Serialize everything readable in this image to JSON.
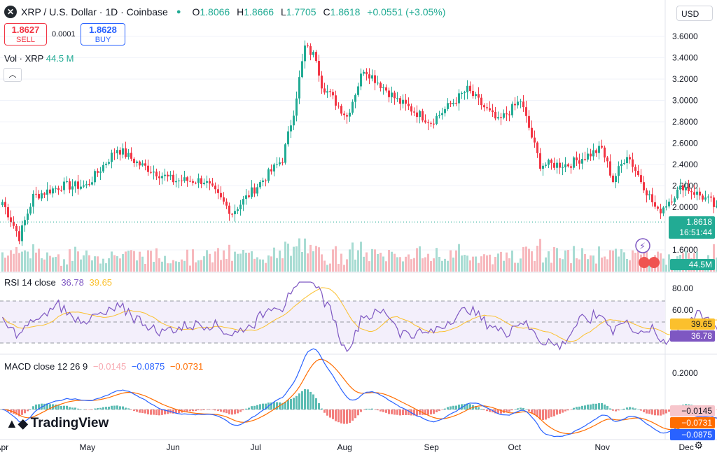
{
  "header": {
    "title": "XRP / U.S. Dollar · 1D · Coinbase",
    "ohlc": [
      {
        "k": "O",
        "v": "1.8066"
      },
      {
        "k": "H",
        "v": "1.8666"
      },
      {
        "k": "L",
        "v": "1.7705"
      },
      {
        "k": "C",
        "v": "1.8618"
      }
    ],
    "change": "+0.0551 (+3.05%)"
  },
  "trade": {
    "sell_price": "1.8627",
    "sell_label": "SELL",
    "spread": "0.0001",
    "buy_price": "1.8628",
    "buy_label": "BUY"
  },
  "currency": "USD",
  "volume_legend": {
    "label": "Vol · XRP",
    "value": "44.5 M"
  },
  "rsi_legend": {
    "label": "RSI 14 close",
    "rsi": "36.78",
    "ma": "39.65"
  },
  "macd_legend": {
    "label": "MACD close 12 26 9",
    "hist": "−0.0145",
    "macd": "−0.0875",
    "signal": "−0.0731"
  },
  "price_tags": {
    "last": "1.8618",
    "countdown": "16:51:44",
    "volume": "44.5M",
    "rsi": "36.78",
    "rsi_ma": "39.65",
    "macd_hist": "−0.0145",
    "macd_signal": "−0.0731",
    "macd": "−0.0875"
  },
  "branding": "TradingView",
  "colors": {
    "up": "#22ab94",
    "down": "#f23645",
    "rsi": "#7e57c2",
    "rsi_ma": "#fbc02d",
    "macd": "#2962ff",
    "signal": "#ff6d00"
  },
  "chart_data": {
    "type": "candlestick",
    "title": "XRP / U.S. Dollar · 1D · Coinbase",
    "price_axis_ticks": [
      "3.6000",
      "3.4000",
      "3.2000",
      "3.0000",
      "2.8000",
      "2.6000",
      "2.4000",
      "2.2000",
      "2.0000",
      "1.6000"
    ],
    "x_ticks": [
      "Apr",
      "May",
      "Jun",
      "Jul",
      "Aug",
      "Sep",
      "Oct",
      "Nov",
      "Dec"
    ],
    "anchors": [
      [
        "2025-04-01",
        2.05
      ],
      [
        "2025-04-07",
        1.72
      ],
      [
        "2025-04-12",
        2.1
      ],
      [
        "2025-04-22",
        2.2
      ],
      [
        "2025-05-01",
        2.2
      ],
      [
        "2025-05-12",
        2.55
      ],
      [
        "2025-05-20",
        2.4
      ],
      [
        "2025-06-01",
        2.25
      ],
      [
        "2025-06-12",
        2.25
      ],
      [
        "2025-06-22",
        1.95
      ],
      [
        "2025-07-01",
        2.2
      ],
      [
        "2025-07-10",
        2.45
      ],
      [
        "2025-07-14",
        2.9
      ],
      [
        "2025-07-18",
        3.5
      ],
      [
        "2025-07-22",
        3.4
      ],
      [
        "2025-07-24",
        3.15
      ],
      [
        "2025-08-02",
        2.85
      ],
      [
        "2025-08-08",
        3.3
      ],
      [
        "2025-08-20",
        3.0
      ],
      [
        "2025-09-01",
        2.8
      ],
      [
        "2025-09-14",
        3.1
      ],
      [
        "2025-09-25",
        2.8
      ],
      [
        "2025-10-03",
        3.0
      ],
      [
        "2025-10-10",
        2.4
      ],
      [
        "2025-10-20",
        2.4
      ],
      [
        "2025-11-01",
        2.55
      ],
      [
        "2025-11-05",
        2.25
      ],
      [
        "2025-11-10",
        2.5
      ],
      [
        "2025-11-21",
        1.95
      ],
      [
        "2025-11-30",
        2.2
      ],
      [
        "2025-12-10",
        2.05
      ],
      [
        "2025-12-15",
        1.86
      ]
    ],
    "rsi_levels": [
      80,
      60
    ],
    "macd_ticks": [
      "0.2000"
    ]
  }
}
